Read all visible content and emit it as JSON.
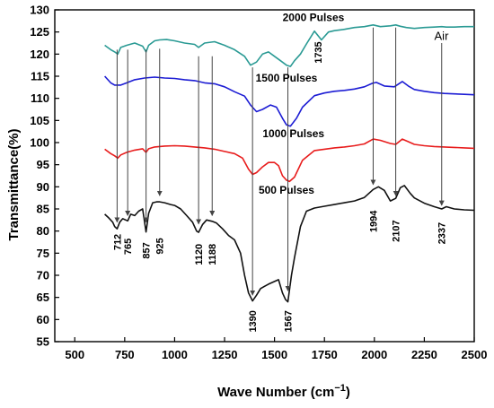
{
  "chart_data": {
    "type": "line",
    "title": "",
    "xlabel": "Wave Number (cm",
    "xlabel_sup": "−1",
    "xlabel_close": ")",
    "ylabel": "Transmittance(%)",
    "xlim": [
      400,
      2500
    ],
    "ylim": [
      55,
      130
    ],
    "x_ticks": [
      500,
      750,
      1000,
      1250,
      1500,
      1750,
      2000,
      2250,
      2500
    ],
    "y_ticks": [
      55,
      60,
      65,
      70,
      75,
      80,
      85,
      90,
      95,
      100,
      105,
      110,
      115,
      120,
      125,
      130
    ],
    "grid": false,
    "series": [
      {
        "name": "2000 Pulses",
        "color": "#2a9a94",
        "x": [
          650,
          680,
          700,
          715,
          730,
          760,
          800,
          840,
          857,
          870,
          900,
          925,
          960,
          1000,
          1050,
          1100,
          1120,
          1150,
          1200,
          1250,
          1300,
          1350,
          1380,
          1410,
          1440,
          1470,
          1500,
          1530,
          1560,
          1580,
          1600,
          1630,
          1660,
          1700,
          1735,
          1770,
          1800,
          1850,
          1900,
          1950,
          1994,
          2030,
          2080,
          2107,
          2130,
          2160,
          2200,
          2250,
          2300,
          2337,
          2360,
          2400,
          2450,
          2500
        ],
        "y": [
          122,
          121,
          120.5,
          120,
          121.5,
          122,
          122.5,
          121.8,
          120.5,
          122,
          123,
          123.2,
          123.3,
          123,
          122.5,
          122.2,
          121.5,
          122.5,
          122.8,
          122,
          121,
          119.5,
          117.5,
          118.2,
          120,
          120.5,
          119.5,
          118.5,
          117.5,
          117.2,
          118.5,
          120,
          122.3,
          125.2,
          123.2,
          125,
          125.3,
          125.6,
          126,
          126.2,
          126.6,
          126.2,
          126.4,
          126.6,
          126.3,
          126,
          125.8,
          126,
          126.1,
          126.2,
          126.1,
          126.1,
          126.2,
          126.2
        ]
      },
      {
        "name": "1500 Pulses",
        "color": "#1c1cd4",
        "x": [
          650,
          680,
          700,
          730,
          760,
          800,
          850,
          900,
          950,
          1000,
          1050,
          1100,
          1150,
          1200,
          1250,
          1300,
          1350,
          1380,
          1410,
          1440,
          1480,
          1510,
          1540,
          1560,
          1580,
          1610,
          1640,
          1700,
          1750,
          1800,
          1850,
          1900,
          1950,
          1990,
          2010,
          2050,
          2100,
          2140,
          2170,
          2200,
          2250,
          2300,
          2350,
          2400,
          2450,
          2500
        ],
        "y": [
          115,
          113.5,
          113,
          113,
          113.5,
          114.2,
          114.6,
          114.8,
          114.6,
          114.5,
          114.2,
          114,
          113.5,
          113.3,
          112.6,
          111.5,
          110.5,
          108.5,
          107,
          107.5,
          108.5,
          108,
          105.5,
          104,
          103.7,
          105.5,
          108,
          110.6,
          111.2,
          111.6,
          111.8,
          112.1,
          112.6,
          113.4,
          113.6,
          112.8,
          112.6,
          113.8,
          112.8,
          112,
          111.6,
          111.3,
          111.1,
          111,
          110.9,
          110.8
        ]
      },
      {
        "name": "1000 Pulses",
        "color": "#e81c1c",
        "x": [
          650,
          680,
          700,
          715,
          730,
          760,
          800,
          840,
          857,
          870,
          900,
          950,
          1000,
          1050,
          1100,
          1150,
          1200,
          1250,
          1300,
          1340,
          1370,
          1390,
          1410,
          1440,
          1470,
          1500,
          1520,
          1540,
          1560,
          1575,
          1600,
          1640,
          1700,
          1750,
          1800,
          1850,
          1900,
          1950,
          1994,
          2030,
          2080,
          2107,
          2140,
          2170,
          2200,
          2250,
          2300,
          2350,
          2400,
          2450,
          2500
        ],
        "y": [
          98.5,
          97.5,
          97,
          96.5,
          97.2,
          97.8,
          98.3,
          98.6,
          97.8,
          98.6,
          99,
          99.2,
          99.3,
          99.2,
          99,
          98.8,
          98.5,
          98,
          97.5,
          96.5,
          94,
          92.8,
          93.2,
          94.5,
          95.5,
          95.5,
          94.8,
          92.5,
          91.5,
          91.2,
          92.2,
          96,
          98.2,
          98.5,
          98.8,
          99,
          99.3,
          99.7,
          100.8,
          100.5,
          99.8,
          99.6,
          100.8,
          100.2,
          99.6,
          99.3,
          99.1,
          99,
          98.9,
          98.8,
          98.7
        ]
      },
      {
        "name": "500 Pulses",
        "color": "#111111",
        "x": [
          650,
          670,
          690,
          700,
          712,
          725,
          740,
          765,
          780,
          800,
          820,
          840,
          857,
          870,
          890,
          910,
          925,
          950,
          980,
          1000,
          1030,
          1060,
          1090,
          1110,
          1120,
          1140,
          1160,
          1188,
          1210,
          1240,
          1270,
          1300,
          1330,
          1350,
          1370,
          1390,
          1410,
          1430,
          1450,
          1470,
          1500,
          1520,
          1540,
          1555,
          1567,
          1585,
          1600,
          1630,
          1660,
          1700,
          1750,
          1800,
          1850,
          1900,
          1950,
          1994,
          2020,
          2050,
          2080,
          2107,
          2130,
          2150,
          2180,
          2200,
          2250,
          2300,
          2337,
          2360,
          2400,
          2450,
          2500
        ],
        "y": [
          83.8,
          83,
          82,
          81,
          80.5,
          82,
          82.8,
          82.3,
          83.8,
          83.5,
          84.5,
          85,
          79.8,
          84,
          86.4,
          86.6,
          86.6,
          86.4,
          86,
          85.8,
          85,
          83.5,
          82,
          80,
          79.7,
          81.5,
          82.5,
          82.2,
          81.8,
          80.5,
          79,
          78,
          75,
          70,
          66,
          64.2,
          65.5,
          67,
          67.5,
          68,
          68.6,
          69,
          66,
          64.5,
          64,
          70,
          74,
          81,
          84.5,
          85.2,
          85.6,
          86,
          86.4,
          86.8,
          87.6,
          89.4,
          90,
          89.2,
          86.8,
          87.4,
          89.8,
          90.3,
          88.5,
          87.5,
          86.3,
          85.5,
          85,
          85.5,
          85,
          84.8,
          84.7
        ]
      }
    ],
    "series_labels": [
      {
        "text": "2000 Pulses",
        "x": 1695,
        "y": 127.5
      },
      {
        "text": "1500 Pulses",
        "x": 1560,
        "y": 113.8
      },
      {
        "text": "1000 Pulses",
        "x": 1595,
        "y": 101.2
      },
      {
        "text": "500 Pulses",
        "x": 1560,
        "y": 88.4
      }
    ],
    "peaks": [
      {
        "label": "712",
        "x": 712,
        "y_top": 121,
        "y_tip": 82,
        "label_y": 77.5
      },
      {
        "label": "765",
        "x": 765,
        "y_top": 121,
        "y_tip": 83.5,
        "label_y": 76.5
      },
      {
        "label": "857",
        "x": 857,
        "y_top": 121,
        "y_tip": 82,
        "label_y": 75.6
      },
      {
        "label": "925",
        "x": 925,
        "y_top": 121.2,
        "y_tip": 88,
        "label_y": 76.6
      },
      {
        "label": "1120",
        "x": 1120,
        "y_top": 119.5,
        "y_tip": 81.6,
        "label_y": 74.7
      },
      {
        "label": "1188",
        "x": 1188,
        "y_top": 119.5,
        "y_tip": 83.5,
        "label_y": 74.7
      },
      {
        "label": "1390",
        "x": 1390,
        "y_top": 117,
        "y_tip": 65.5,
        "label_y": 59.6
      },
      {
        "label": "1567",
        "x": 1567,
        "y_top": 117,
        "y_tip": 66.5,
        "label_y": 59.6
      },
      {
        "label": "1994",
        "x": 1994,
        "y_top": 126,
        "y_tip": 90.5,
        "label_y": 82.2
      },
      {
        "label": "2107",
        "x": 2107,
        "y_top": 126,
        "y_tip": 88,
        "label_y": 80
      },
      {
        "label": "2337",
        "x": 2337,
        "y_top": 122.5,
        "y_tip": 85.8,
        "label_y": 79.5
      }
    ],
    "annotations": [
      {
        "text": "1735",
        "x": 1735,
        "y": 123.2,
        "rotated": true
      },
      {
        "text": "Air",
        "x": 2300,
        "y": 123.2,
        "rotated": false
      }
    ]
  }
}
